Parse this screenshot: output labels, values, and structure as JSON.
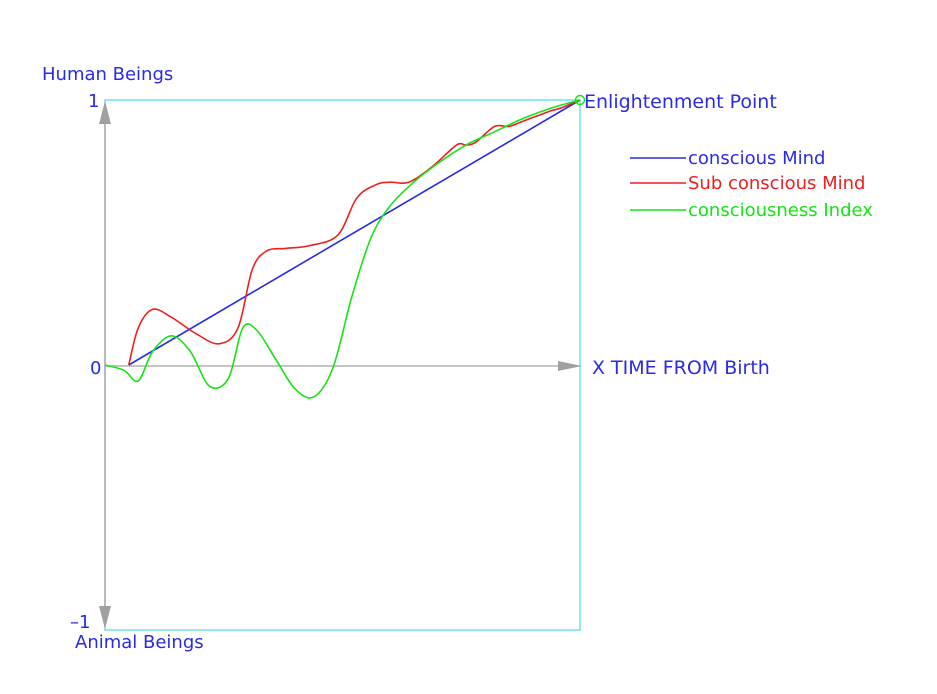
{
  "chart_data": {
    "type": "line",
    "title": "",
    "xlabel": "X TIME FROM Birth",
    "ylabel": "",
    "y_top_label": "Human Beings",
    "y_bottom_label": "Animal Beings",
    "y_ticks": [
      {
        "value": 1,
        "label": "1"
      },
      {
        "value": 0,
        "label": "0"
      },
      {
        "value": -1,
        "label": "–1"
      }
    ],
    "xlim": [
      0,
      1
    ],
    "ylim": [
      -1,
      1
    ],
    "grid": false,
    "legend_position": "top-right",
    "annotations": [
      {
        "text": "Enlightenment Point",
        "x": 1,
        "y": 1
      }
    ],
    "series": [
      {
        "name": "conscious Mind",
        "color": "#2a2ae8",
        "x": [
          0.05,
          1.0
        ],
        "y": [
          0.0,
          1.0
        ]
      },
      {
        "name": "Sub conscious Mind",
        "color": "#ec2020",
        "x": [
          0.05,
          0.07,
          0.1,
          0.14,
          0.19,
          0.24,
          0.28,
          0.31,
          0.34,
          0.38,
          0.43,
          0.49,
          0.53,
          0.57,
          0.6,
          0.64,
          0.69,
          0.74,
          0.76,
          0.78,
          0.82,
          0.85,
          0.88,
          0.91,
          0.94,
          0.96,
          1.0
        ],
        "y": [
          0.0,
          0.14,
          0.21,
          0.18,
          0.12,
          0.08,
          0.14,
          0.36,
          0.43,
          0.44,
          0.45,
          0.49,
          0.63,
          0.68,
          0.69,
          0.69,
          0.75,
          0.83,
          0.83,
          0.84,
          0.9,
          0.9,
          0.92,
          0.94,
          0.96,
          0.97,
          1.0
        ]
      },
      {
        "name": "consciousness Index",
        "color": "#14e414",
        "x": [
          0.0,
          0.04,
          0.07,
          0.1,
          0.14,
          0.18,
          0.22,
          0.26,
          0.29,
          0.32,
          0.36,
          0.4,
          0.44,
          0.48,
          0.52,
          0.56,
          0.6,
          0.65,
          0.7,
          0.76,
          0.82,
          0.88,
          0.94,
          1.0
        ],
        "y": [
          0.0,
          -0.02,
          -0.06,
          0.05,
          0.11,
          0.05,
          -0.08,
          -0.05,
          0.14,
          0.13,
          0.02,
          -0.09,
          -0.12,
          -0.01,
          0.26,
          0.48,
          0.6,
          0.69,
          0.76,
          0.83,
          0.88,
          0.93,
          0.97,
          1.0
        ]
      }
    ]
  }
}
